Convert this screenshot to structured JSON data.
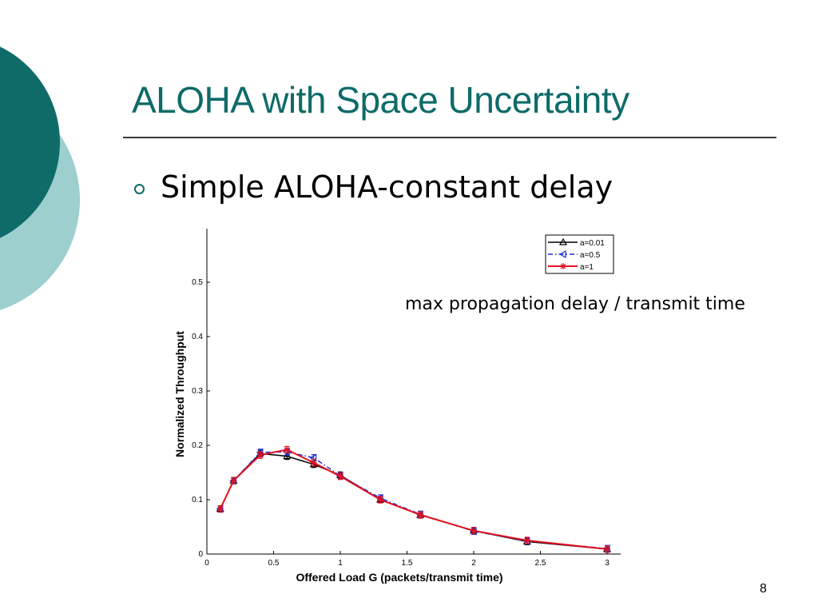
{
  "slide": {
    "title": "ALOHA with Space Uncertainty",
    "bullet": "Simple ALOHA-constant delay",
    "annotation": "max propagation delay / transmit time",
    "page_number": "8",
    "colors": {
      "accent": "#0e6b68",
      "accent_light": "#9dcfcf"
    },
    "bullet_icon": "hollow-circle-bullet"
  },
  "chart_data": {
    "type": "line",
    "title": "",
    "xlabel": "Offered Load G (packets/transmit time)",
    "ylabel": "Normalized Throughput",
    "xlim": [
      0,
      3
    ],
    "ylim": [
      0,
      0.5
    ],
    "xticks": [
      "0",
      "0.5",
      "1",
      "1.5",
      "2",
      "2.5",
      "3"
    ],
    "yticks": [
      "0",
      "0.1",
      "0.2",
      "0.3",
      "0.4",
      "0.5"
    ],
    "legend_position": "top-right",
    "grid": false,
    "series": [
      {
        "name": "a=0.01",
        "color": "#000000",
        "style": "solid",
        "marker": "triangle-up",
        "x": [
          0.1,
          0.2,
          0.4,
          0.6,
          0.8,
          1.0,
          1.3,
          1.6,
          2.0,
          2.4,
          3.0
        ],
        "y": [
          0.083,
          0.135,
          0.185,
          0.18,
          0.165,
          0.145,
          0.1,
          0.072,
          0.043,
          0.023,
          0.009
        ]
      },
      {
        "name": "a=0.5",
        "color": "#1f2fd6",
        "style": "dashdot",
        "marker": "triangle-left",
        "x": [
          0.1,
          0.2,
          0.4,
          0.6,
          0.8,
          1.0,
          1.3,
          1.6,
          2.0,
          2.4,
          3.0
        ],
        "y": [
          0.083,
          0.135,
          0.187,
          0.188,
          0.177,
          0.144,
          0.103,
          0.073,
          0.042,
          0.024,
          0.01
        ]
      },
      {
        "name": "a=1",
        "color": "#e3111f",
        "style": "solid",
        "marker": "star",
        "x": [
          0.1,
          0.2,
          0.4,
          0.6,
          0.8,
          1.0,
          1.3,
          1.6,
          2.0,
          2.4,
          3.0
        ],
        "y": [
          0.083,
          0.135,
          0.182,
          0.192,
          0.168,
          0.143,
          0.1,
          0.072,
          0.043,
          0.025,
          0.009
        ]
      }
    ]
  }
}
